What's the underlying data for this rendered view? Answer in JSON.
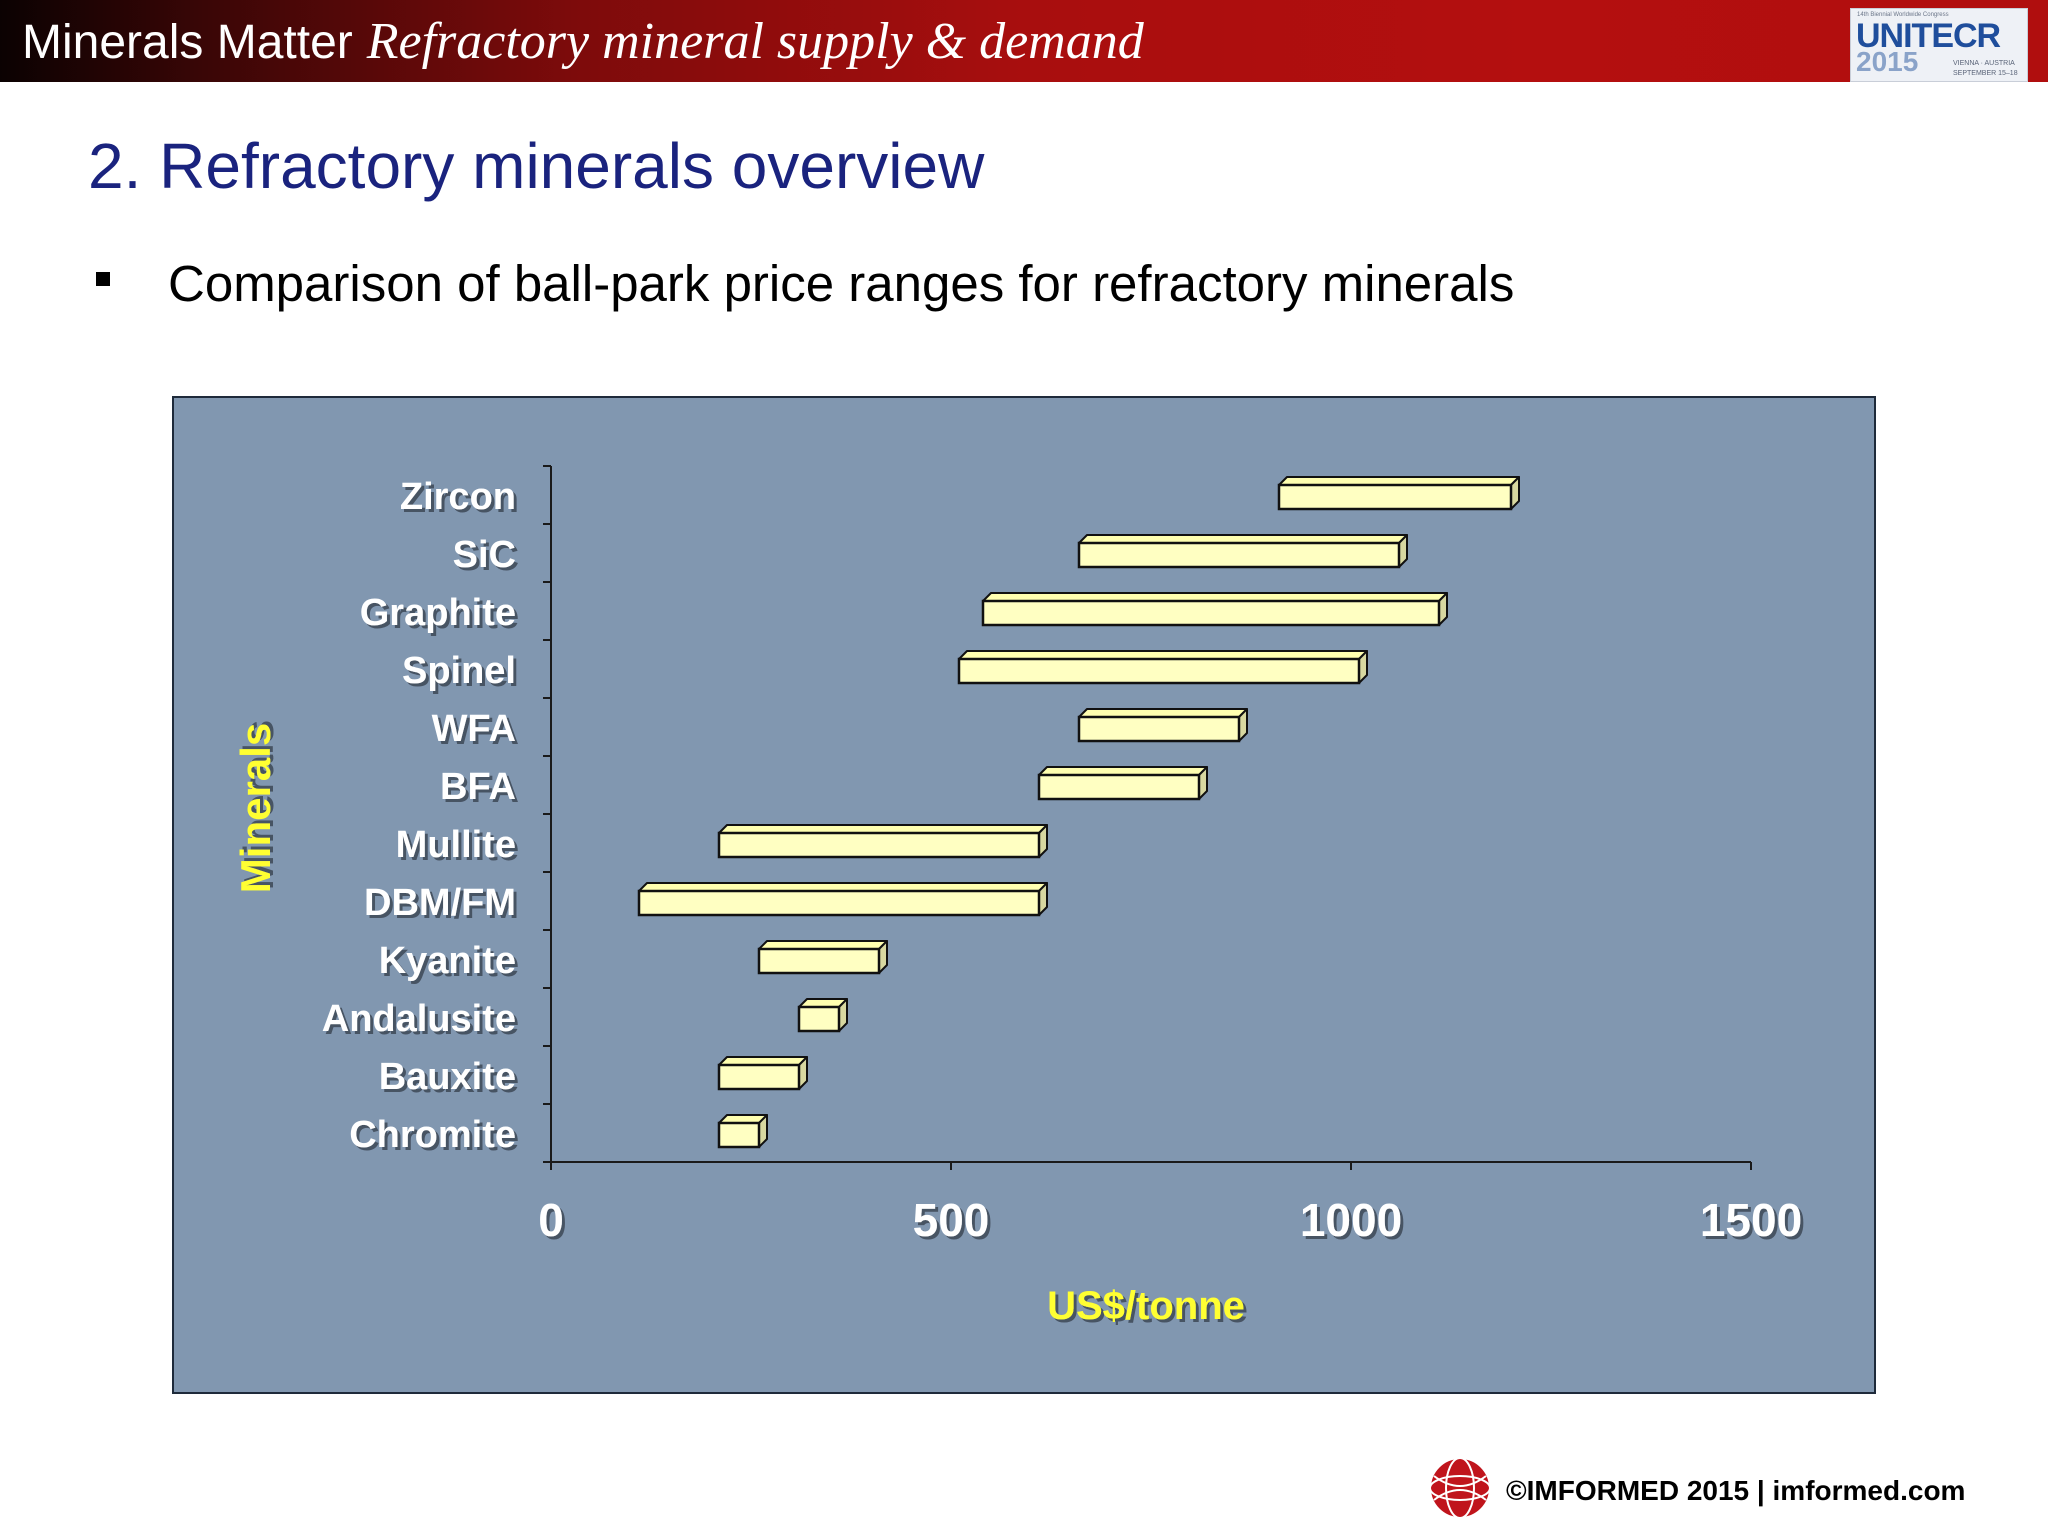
{
  "header": {
    "title_plain": "Minerals Matter",
    "title_italic": "Refractory mineral supply & demand",
    "logo": {
      "tagline": "14th Biennial Worldwide Congress",
      "brand": "UNITECR",
      "year": "2015",
      "place": "VIENNA · AUSTRIA",
      "dates": "SEPTEMBER 15–18"
    }
  },
  "slide": {
    "title": "2. Refractory minerals overview",
    "bullet": "Comparison of ball-park price ranges for refractory minerals"
  },
  "footer": {
    "text": "©IMFORMED 2015  | imformed.com"
  },
  "colors": {
    "header_red": "#b00e0e",
    "title_navy": "#1a237e",
    "chart_bg": "#8197b0",
    "bar_fill": "#ffffc2",
    "axis_title_yellow": "#ffff33",
    "footer_logo_red": "#c0141c"
  },
  "chart_data": {
    "type": "bar",
    "orientation": "horizontal",
    "style": "floating range bars (3D)",
    "xlabel": "US$/tonne",
    "ylabel": "Minerals",
    "xlim": [
      0,
      1500
    ],
    "xticks": [
      0,
      500,
      1000,
      1500
    ],
    "grid": false,
    "legend": "none",
    "categories": [
      "Zircon",
      "SiC",
      "Graphite",
      "Spinel",
      "WFA",
      "BFA",
      "Mullite",
      "DBM/FM",
      "Kyanite",
      "Andalusite",
      "Bauxite",
      "Chromite"
    ],
    "ranges": [
      [
        910,
        1200
      ],
      [
        660,
        1060
      ],
      [
        540,
        1110
      ],
      [
        510,
        1010
      ],
      [
        660,
        860
      ],
      [
        610,
        810
      ],
      [
        210,
        610
      ],
      [
        110,
        610
      ],
      [
        260,
        410
      ],
      [
        310,
        360
      ],
      [
        210,
        310
      ],
      [
        210,
        260
      ]
    ]
  }
}
